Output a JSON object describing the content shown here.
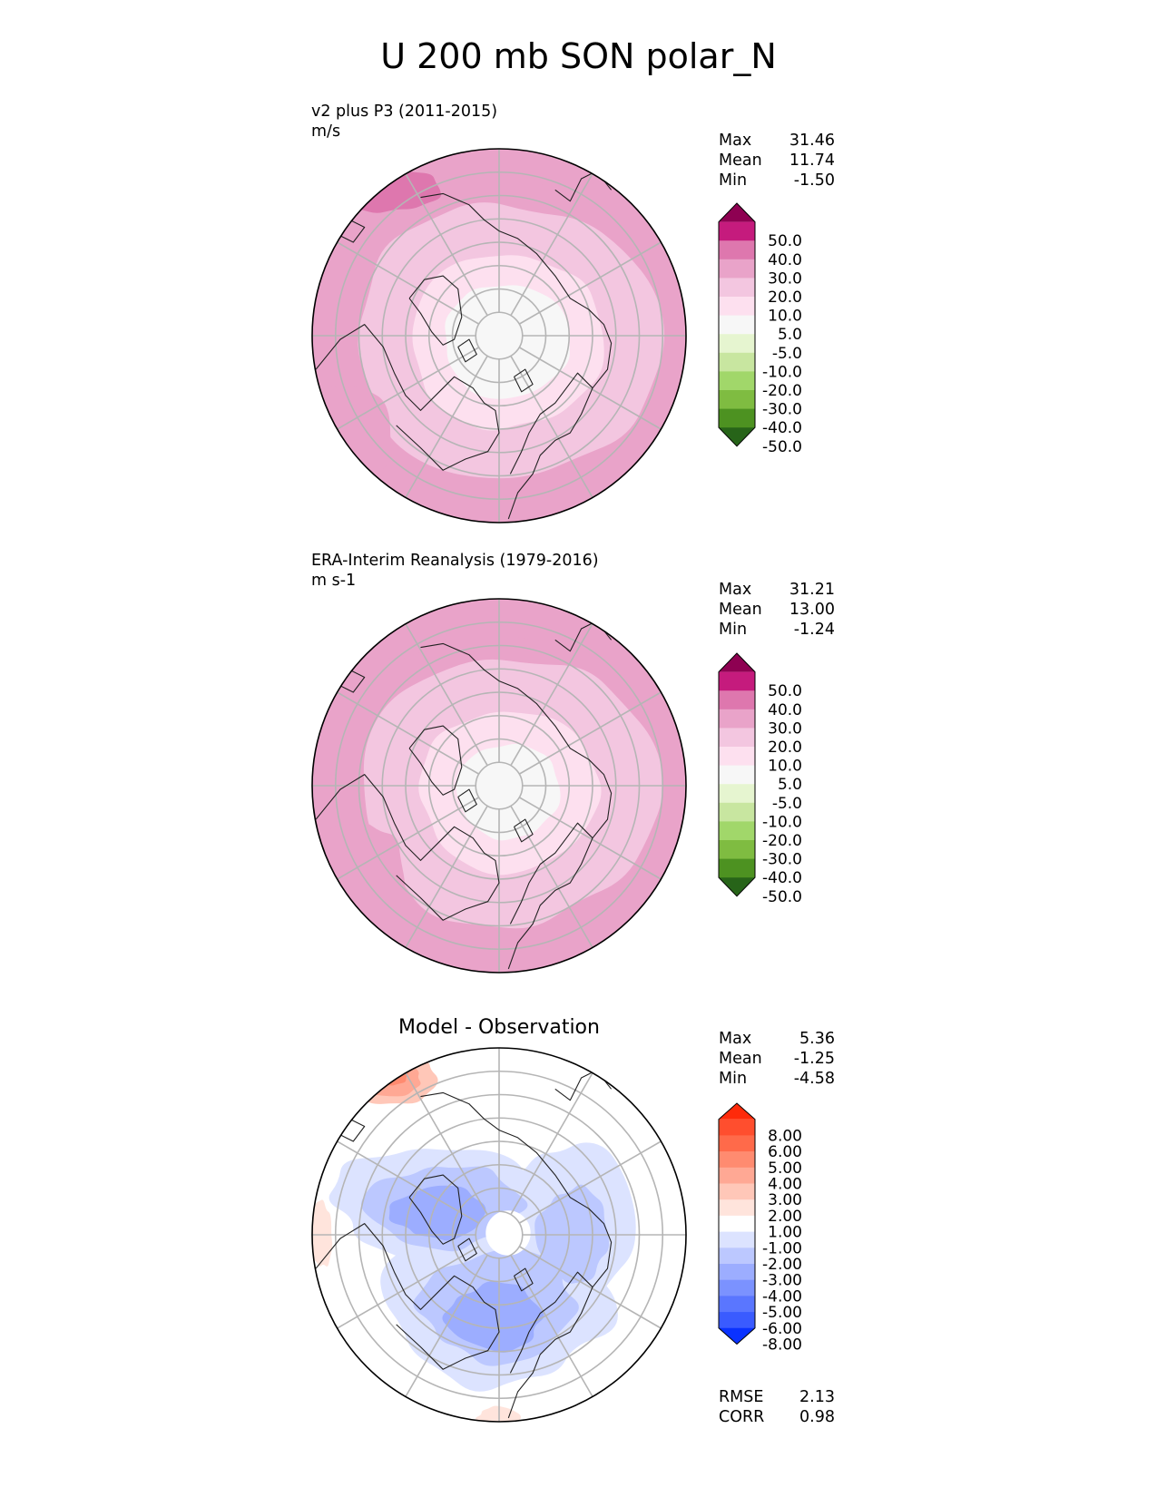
{
  "figure_title": "U 200 mb SON polar_N",
  "chart_data": [
    {
      "type": "contour-map",
      "projection": "north polar stereographic",
      "title": "v2 plus P3 (2011-2015)",
      "units": "m/s",
      "stats": {
        "max_label": "Max",
        "max": "31.46",
        "mean_label": "Mean",
        "mean": "11.74",
        "min_label": "Min",
        "min": "-1.50"
      },
      "colorbar": {
        "levels": [
          "50.0",
          "40.0",
          "30.0",
          "20.0",
          "10.0",
          "5.0",
          "-5.0",
          "-10.0",
          "-20.0",
          "-30.0",
          "-40.0",
          "-50.0"
        ],
        "colors": [
          "#8e0152",
          "#c51b7d",
          "#de77ae",
          "#e9a3c9",
          "#f3c6e0",
          "#fde0ef",
          "#f7f7f7",
          "#e6f5d0",
          "#c8e6a0",
          "#a1d76a",
          "#7fbc41",
          "#4d9221",
          "#276419"
        ]
      },
      "field_bands": [
        {
          "level": "< 5.0",
          "color": "#f7f7f7",
          "rel": 0.34
        },
        {
          "level": "5.0 - 10.0",
          "color": "#fde0ef",
          "rel": 0.52
        },
        {
          "level": "10.0 - 20.0",
          "color": "#f3c6e0",
          "rel": 0.82
        },
        {
          "level": "20.0 - 30.0",
          "color": "#e9a3c9",
          "rel": 1.0
        }
      ]
    },
    {
      "type": "contour-map",
      "projection": "north polar stereographic",
      "title": "ERA-Interim Reanalysis (1979-2016)",
      "units": "m s-1",
      "stats": {
        "max_label": "Max",
        "max": "31.21",
        "mean_label": "Mean",
        "mean": "13.00",
        "min_label": "Min",
        "min": "-1.24"
      },
      "colorbar": {
        "levels": [
          "50.0",
          "40.0",
          "30.0",
          "20.0",
          "10.0",
          "5.0",
          "-5.0",
          "-10.0",
          "-20.0",
          "-30.0",
          "-40.0",
          "-50.0"
        ],
        "colors": [
          "#8e0152",
          "#c51b7d",
          "#de77ae",
          "#e9a3c9",
          "#f3c6e0",
          "#fde0ef",
          "#f7f7f7",
          "#e6f5d0",
          "#c8e6a0",
          "#a1d76a",
          "#7fbc41",
          "#4d9221",
          "#276419"
        ]
      },
      "field_bands": [
        {
          "level": "< 5.0",
          "color": "#f7f7f7",
          "rel": 0.28
        },
        {
          "level": "5.0 - 10.0",
          "color": "#fde0ef",
          "rel": 0.48
        },
        {
          "level": "10.0 - 20.0",
          "color": "#f3c6e0",
          "rel": 0.8
        },
        {
          "level": "20.0 - 30.0",
          "color": "#e9a3c9",
          "rel": 1.0
        }
      ]
    },
    {
      "type": "contour-map",
      "projection": "north polar stereographic",
      "title": "Model - Observation",
      "stats": {
        "max_label": "Max",
        "max": "5.36",
        "mean_label": "Mean",
        "mean": "-1.25",
        "min_label": "Min",
        "min": "-4.58"
      },
      "metrics": {
        "rmse_label": "RMSE",
        "rmse": "2.13",
        "corr_label": "CORR",
        "corr": "0.98"
      },
      "colorbar": {
        "levels": [
          "8.00",
          "6.00",
          "5.00",
          "4.00",
          "3.00",
          "2.00",
          "1.00",
          "-1.00",
          "-2.00",
          "-3.00",
          "-4.00",
          "-5.00",
          "-6.00",
          "-8.00"
        ],
        "colors": [
          "#ff2a0a",
          "#ff4e2e",
          "#ff6a4a",
          "#ff8b70",
          "#ffa894",
          "#ffc7b8",
          "#ffe4dc",
          "#ffffff",
          "#dce3ff",
          "#bcc8ff",
          "#9cadff",
          "#7b92ff",
          "#5a76ff",
          "#3a5bff",
          "#0a32ff"
        ]
      },
      "field_bands": [
        {
          "level": "-1.00 - 1.00",
          "color": "#ffffff"
        },
        {
          "level": "-2.00 - -1.00",
          "color": "#dce3ff"
        },
        {
          "level": "-3.00 - -2.00",
          "color": "#bcc8ff"
        },
        {
          "level": "-4.00 - -3.00",
          "color": "#9cadff"
        },
        {
          "level": "1.00 - 2.00",
          "color": "#ffe4dc"
        },
        {
          "level": "2.00 - 3.00",
          "color": "#ffc7b8"
        },
        {
          "level": "3.00 - 4.00",
          "color": "#ffa894"
        },
        {
          "level": "4.00 - 5.00",
          "color": "#ff8b70"
        }
      ]
    }
  ]
}
